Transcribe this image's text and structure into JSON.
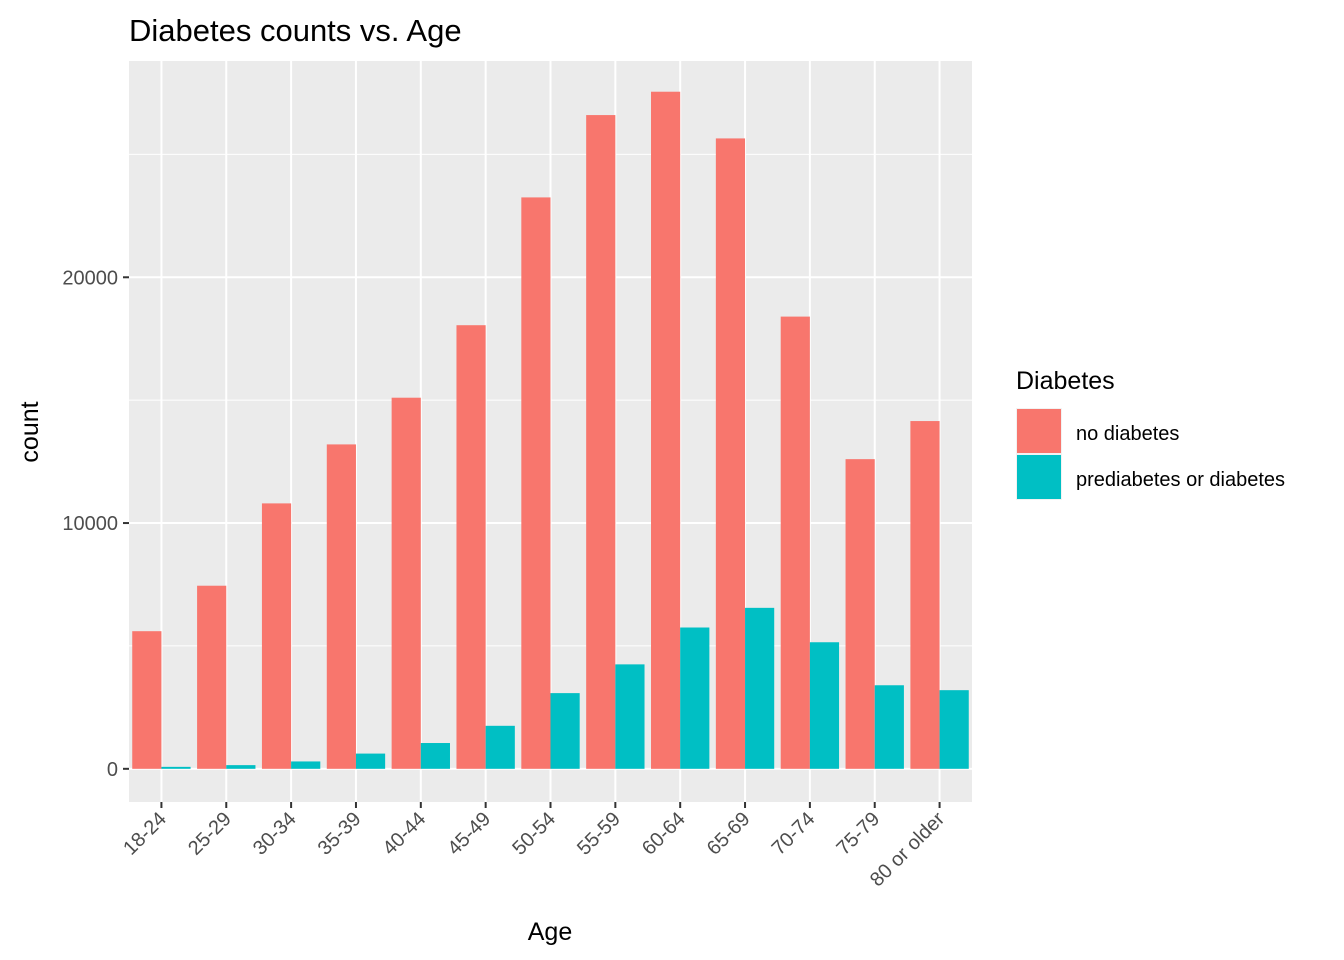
{
  "chart_data": {
    "type": "bar",
    "title": "Diabetes counts vs. Age",
    "xlabel": "Age",
    "ylabel": "count",
    "categories": [
      "18-24",
      "25-29",
      "30-34",
      "35-39",
      "40-44",
      "45-49",
      "50-54",
      "55-59",
      "60-64",
      "65-69",
      "70-74",
      "75-79",
      "80 or older"
    ],
    "series": [
      {
        "name": "no diabetes",
        "color": "#F8766D",
        "values": [
          5600,
          7450,
          10800,
          13200,
          15100,
          18050,
          23250,
          26600,
          27550,
          25650,
          18400,
          12600,
          14150
        ]
      },
      {
        "name": "prediabetes or diabetes",
        "color": "#00BFC4",
        "values": [
          80,
          150,
          300,
          620,
          1050,
          1750,
          3080,
          4250,
          5750,
          6550,
          5150,
          3400,
          3200
        ]
      }
    ],
    "ylim": [
      -1350,
      28800
    ],
    "yticks": [
      0,
      10000,
      20000
    ],
    "yticks_labels": [
      "0",
      "10000",
      "20000"
    ],
    "grid": true,
    "panel_background": "#EBEBEB",
    "legend": {
      "title": "Diabetes",
      "position": "right"
    },
    "x_tick_rotation": 45
  }
}
